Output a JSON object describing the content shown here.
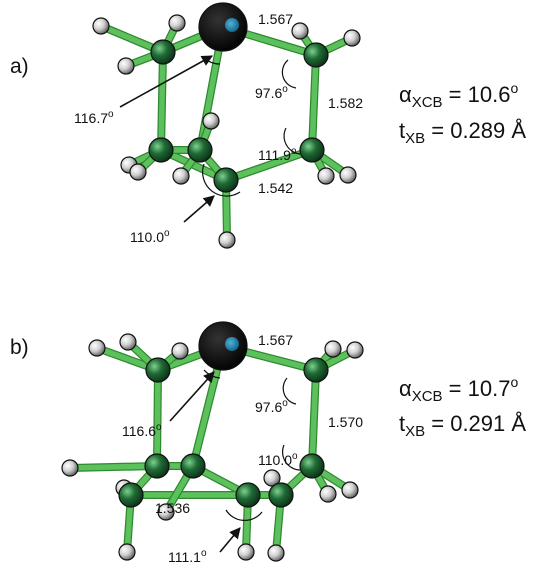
{
  "panels": [
    {
      "id": "a",
      "label": "a)",
      "bond_top": "1.567",
      "bond_right": "1.582",
      "bond_bottom": "1.542",
      "angle_top_right": "97.6",
      "angle_right": "111.9",
      "angle_left_arrow": "116.7",
      "angle_bottom_arrow": "110.0",
      "degree_mark": "o",
      "alpha_symbol": "α",
      "alpha_sub": "XCB",
      "alpha_value": " = 10.6",
      "t_symbol": "t",
      "t_sub": "XB",
      "t_value": " = 0.289 Å"
    },
    {
      "id": "b",
      "label": "b)",
      "bond_top": "1.567",
      "bond_right": "1.570",
      "bond_bottom": "1.536",
      "angle_top_right": "97.6",
      "angle_right": "110.0",
      "angle_left_arrow": "116.6",
      "angle_bottom_arrow": "111.1",
      "degree_mark": "o",
      "alpha_symbol": "α",
      "alpha_sub": "XCB",
      "alpha_value": " = 10.7",
      "t_symbol": "t",
      "t_sub": "XB",
      "t_value": " = 0.291 Å"
    }
  ],
  "colors": {
    "bond": "#5cc05c",
    "bond_edge": "#2f8a2f",
    "carbon": "#1f6b35",
    "hydrogen": "#d9d9d9",
    "halogen": "#0a0a0a",
    "halogen_core": "#1f7fa8"
  }
}
